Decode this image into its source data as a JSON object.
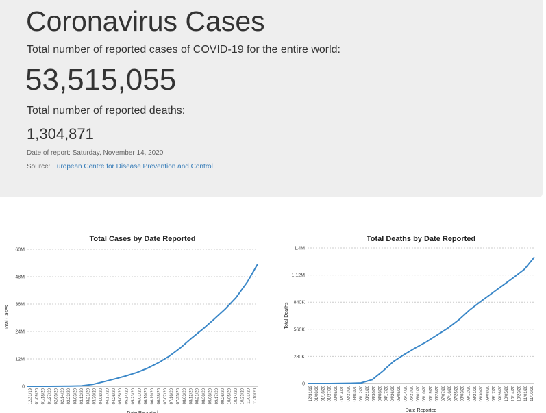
{
  "header": {
    "title": "Coronavirus Cases",
    "cases_description": "Total number of reported cases of COVID-19 for the entire world:",
    "total_cases": "53,515,055",
    "deaths_description": "Total number of reported deaths:",
    "total_deaths": "1,304,871",
    "report_date": "Date of report: Saturday, November 14, 2020",
    "source_prefix": "Source: ",
    "source_link": "European Centre for Disease Prevention and Control"
  },
  "colors": {
    "line": "#3a87c8",
    "link": "#337ab7",
    "jumbotron_bg": "#eeeeee"
  },
  "chart_data": [
    {
      "type": "line",
      "title": "Total Cases by Date Reported",
      "xlabel": "Date Reported",
      "ylabel": "Total Cases",
      "ylim": [
        0,
        60000000
      ],
      "y_ticks": [
        0,
        12000000,
        24000000,
        36000000,
        48000000,
        60000000
      ],
      "y_tick_labels": [
        "0",
        "12M",
        "24M",
        "36M",
        "48M",
        "60M"
      ],
      "x_tick_labels": [
        "12/31/19",
        "01/09/20",
        "01/18/20",
        "01/27/20",
        "02/05/20",
        "02/14/20",
        "02/23/20",
        "03/03/20",
        "03/12/20",
        "03/21/20",
        "03/30/20",
        "04/08/20",
        "04/17/20",
        "04/26/20",
        "05/05/20",
        "05/14/20",
        "05/23/20",
        "06/01/20",
        "06/10/20",
        "06/19/20",
        "06/28/20",
        "07/07/20",
        "07/16/20",
        "07/25/20",
        "08/03/20",
        "08/12/20",
        "08/21/20",
        "08/30/20",
        "09/08/20",
        "09/17/20",
        "09/26/20",
        "10/05/20",
        "10/14/20",
        "10/23/20",
        "11/01/20",
        "11/10/20"
      ],
      "grid": true,
      "series": [
        {
          "x": [
            "12/31/19",
            "01/31/20",
            "02/29/20",
            "03/15/20",
            "03/31/20",
            "04/15/20",
            "04/30/20",
            "05/15/20",
            "05/31/20",
            "06/15/20",
            "06/30/20",
            "07/15/20",
            "07/31/20",
            "08/15/20",
            "08/31/20",
            "09/15/20",
            "09/30/20",
            "10/15/20",
            "10/31/20",
            "11/14/20"
          ],
          "values": [
            0,
            10000,
            85000,
            165000,
            850000,
            2000000,
            3200000,
            4500000,
            6100000,
            8000000,
            10400000,
            13300000,
            17100000,
            21200000,
            25300000,
            29500000,
            33800000,
            38800000,
            45800000,
            53500000
          ]
        }
      ]
    },
    {
      "type": "line",
      "title": "Total Deaths by Date Reported",
      "xlabel": "Date Reported",
      "ylabel": "Total Deaths",
      "ylim": [
        0,
        1400000
      ],
      "y_ticks": [
        0,
        280000,
        560000,
        840000,
        1120000,
        1400000
      ],
      "y_tick_labels": [
        "0",
        "280K",
        "560K",
        "840K",
        "1.12M",
        "1.4M"
      ],
      "x_tick_labels": [
        "12/31/19",
        "01/09/20",
        "01/18/20",
        "01/27/20",
        "02/05/20",
        "02/14/20",
        "02/23/20",
        "03/03/20",
        "03/12/20",
        "03/21/20",
        "03/30/20",
        "04/08/20",
        "04/17/20",
        "04/26/20",
        "05/05/20",
        "05/14/20",
        "05/23/20",
        "06/01/20",
        "06/10/20",
        "06/19/20",
        "06/28/20",
        "07/07/20",
        "07/16/20",
        "07/25/20",
        "08/03/20",
        "08/12/20",
        "08/21/20",
        "08/30/20",
        "09/08/20",
        "09/17/20",
        "09/26/20",
        "10/05/20",
        "10/14/20",
        "10/23/20",
        "11/01/20",
        "11/10/20"
      ],
      "grid": true,
      "series": [
        {
          "x": [
            "12/31/19",
            "01/31/20",
            "02/29/20",
            "03/15/20",
            "03/31/20",
            "04/15/20",
            "04/30/20",
            "05/15/20",
            "05/31/20",
            "06/15/20",
            "06/30/20",
            "07/15/20",
            "07/31/20",
            "08/15/20",
            "08/31/20",
            "09/15/20",
            "09/30/20",
            "10/15/20",
            "10/31/20",
            "11/14/20"
          ],
          "values": [
            0,
            200,
            3000,
            6500,
            40000,
            130000,
            230000,
            300000,
            370000,
            430000,
            500000,
            570000,
            660000,
            760000,
            850000,
            930000,
            1010000,
            1090000,
            1180000,
            1305000
          ]
        }
      ]
    }
  ]
}
